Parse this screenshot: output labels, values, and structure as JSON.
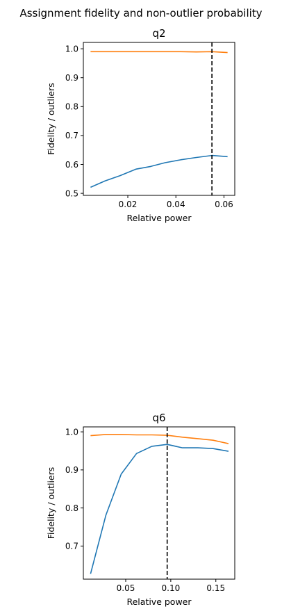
{
  "figure_title": "Assignment fidelity and non-outlier probability",
  "colors": {
    "fidelity": "#1f77b4",
    "non_outlier": "#ff7f0e",
    "marker": "#000000"
  },
  "chart_data": [
    {
      "type": "line",
      "title": "q2",
      "xlabel": "Relative power",
      "ylabel": "Fidelity / outliers",
      "xlim": [
        0.0015,
        0.0645
      ],
      "ylim": [
        0.493,
        1.022
      ],
      "xticks": [
        0.02,
        0.04,
        0.06
      ],
      "xtick_labels": [
        "0.02",
        "0.04",
        "0.06"
      ],
      "yticks": [
        0.5,
        0.6,
        0.7,
        0.8,
        0.9,
        1.0
      ],
      "ytick_labels": [
        "0.5",
        "0.6",
        "0.7",
        "0.8",
        "0.9",
        "1.0"
      ],
      "grid": false,
      "vline": {
        "x": 0.055,
        "style": "dashed"
      },
      "x": [
        0.0045,
        0.0105,
        0.0167,
        0.0235,
        0.0295,
        0.0355,
        0.042,
        0.0485,
        0.055,
        0.0615
      ],
      "series": [
        {
          "values": [
            0.521,
            0.543,
            0.561,
            0.584,
            0.593,
            0.606,
            0.616,
            0.624,
            0.631,
            0.627
          ]
        },
        {
          "values": [
            0.99,
            0.99,
            0.99,
            0.99,
            0.99,
            0.99,
            0.99,
            0.989,
            0.99,
            0.987
          ]
        }
      ]
    },
    {
      "type": "line",
      "title": "q6",
      "xlabel": "Relative power",
      "ylabel": "Fidelity / outliers",
      "xlim": [
        0.003,
        0.171
      ],
      "ylim": [
        0.613,
        1.013
      ],
      "xticks": [
        0.05,
        0.1,
        0.15
      ],
      "xtick_labels": [
        "0.05",
        "0.10",
        "0.15"
      ],
      "yticks": [
        0.7,
        0.8,
        0.9,
        1.0
      ],
      "ytick_labels": [
        "0.7",
        "0.8",
        "0.9",
        "1.0"
      ],
      "grid": false,
      "vline": {
        "x": 0.096,
        "style": "dashed"
      },
      "x": [
        0.011,
        0.028,
        0.045,
        0.062,
        0.079,
        0.096,
        0.113,
        0.13,
        0.147,
        0.164
      ],
      "series": [
        {
          "values": [
            0.627,
            0.781,
            0.889,
            0.943,
            0.962,
            0.967,
            0.958,
            0.958,
            0.956,
            0.949
          ]
        },
        {
          "values": [
            0.99,
            0.993,
            0.993,
            0.992,
            0.992,
            0.991,
            0.986,
            0.982,
            0.978,
            0.969
          ]
        }
      ]
    }
  ]
}
